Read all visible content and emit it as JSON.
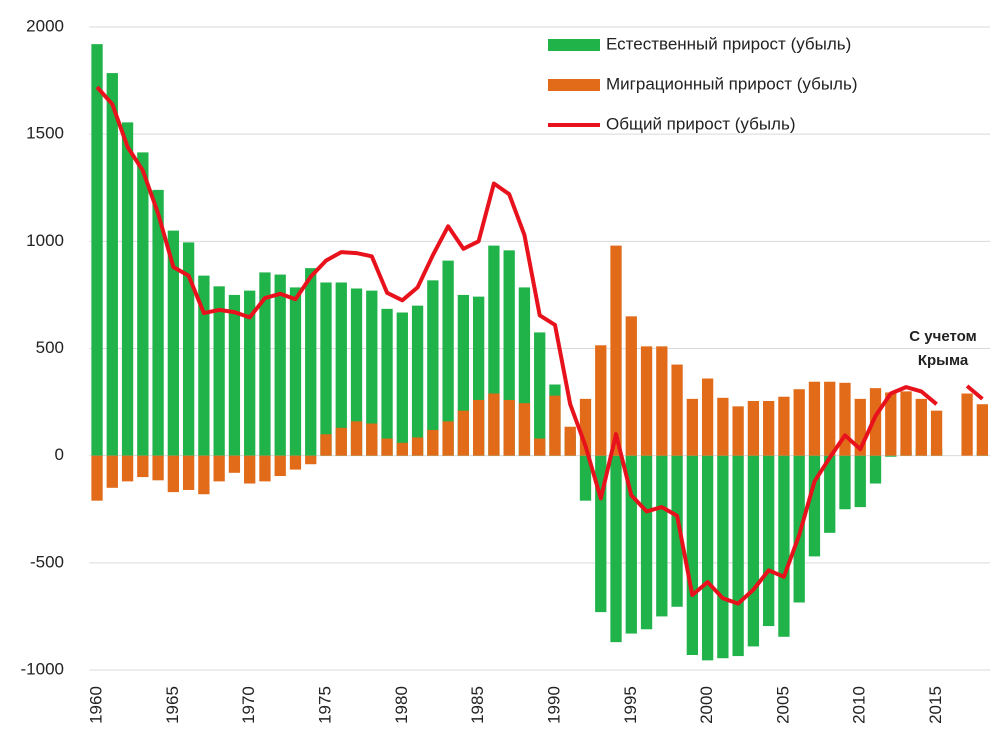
{
  "chart_data": {
    "type": "bar",
    "x": [
      1960,
      1961,
      1962,
      1963,
      1964,
      1965,
      1966,
      1967,
      1968,
      1969,
      1970,
      1971,
      1972,
      1973,
      1974,
      1975,
      1976,
      1977,
      1978,
      1979,
      1980,
      1981,
      1982,
      1983,
      1984,
      1985,
      1986,
      1987,
      1988,
      1989,
      1990,
      1991,
      1992,
      1993,
      1994,
      1995,
      1996,
      1997,
      1998,
      1999,
      2000,
      2001,
      2002,
      2003,
      2004,
      2005,
      2006,
      2007,
      2008,
      2009,
      2010,
      2011,
      2012,
      2013,
      2014,
      2015,
      2016,
      2017,
      2018
    ],
    "series": [
      {
        "name": "Естественный прирост (убыль)",
        "color": "#1fb34a",
        "type": "bar",
        "values": [
          1920,
          1785,
          1555,
          1415,
          1240,
          1050,
          995,
          840,
          790,
          750,
          770,
          855,
          845,
          785,
          875,
          808,
          808,
          780,
          770,
          685,
          668,
          700,
          818,
          910,
          750,
          742,
          980,
          958,
          785,
          575,
          332,
          104,
          -210,
          -730,
          -870,
          -830,
          -810,
          -750,
          -705,
          -930,
          -955,
          -945,
          -935,
          -890,
          -795,
          -845,
          -685,
          -470,
          -360,
          -250,
          -240,
          -130,
          -5,
          25,
          30,
          32,
          null,
          0,
          20
        ]
      },
      {
        "name": "Миграционный прирост (убыль)",
        "color": "#e26b1a",
        "type": "bar",
        "values": [
          -210,
          -150,
          -120,
          -100,
          -115,
          -170,
          -160,
          -180,
          -120,
          -80,
          -130,
          -120,
          -95,
          -65,
          -40,
          100,
          130,
          160,
          150,
          80,
          60,
          85,
          120,
          160,
          210,
          260,
          290,
          260,
          245,
          80,
          280,
          135,
          265,
          515,
          980,
          650,
          510,
          510,
          425,
          265,
          360,
          270,
          230,
          255,
          255,
          275,
          310,
          345,
          345,
          340,
          265,
          315,
          295,
          300,
          265,
          210,
          null,
          290,
          240
        ]
      },
      {
        "name": "Общий  прирост (убыль)",
        "color": "#e8121c",
        "type": "line",
        "values": [
          1720,
          1640,
          1440,
          1330,
          1130,
          880,
          840,
          665,
          680,
          670,
          645,
          735,
          755,
          730,
          835,
          910,
          950,
          945,
          930,
          760,
          725,
          785,
          935,
          1070,
          965,
          1000,
          1270,
          1220,
          1030,
          655,
          610,
          240,
          45,
          -200,
          100,
          -185,
          -260,
          -240,
          -280,
          -650,
          -590,
          -665,
          -690,
          -625,
          -535,
          -565,
          -370,
          -120,
          -10,
          95,
          30,
          185,
          290,
          320,
          300,
          240,
          null,
          325,
          265
        ]
      }
    ],
    "xlim": [
      1959.5,
      2018.5
    ],
    "xticks": [
      1960,
      1965,
      1970,
      1975,
      1980,
      1985,
      1990,
      1995,
      2000,
      2005,
      2010,
      2015
    ],
    "ylim": [
      -1000,
      2000
    ],
    "yticks": [
      -1000,
      -500,
      0,
      500,
      1000,
      1500,
      2000
    ],
    "grid": true,
    "legend": "upper right",
    "annotation": [
      "С учетом",
      "Крыма"
    ],
    "annotation_color": "#e8121c"
  }
}
